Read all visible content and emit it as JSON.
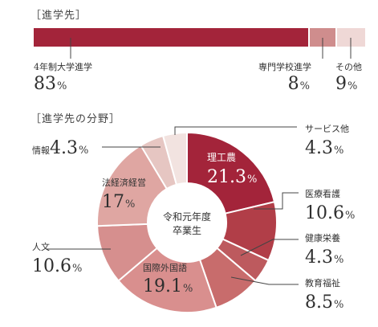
{
  "bar_section": {
    "heading": "［進学先］"
  },
  "pie_section": {
    "heading": "［進学先の分野］",
    "center_label_1": "令和元年度",
    "center_label_2": "卒業生"
  },
  "colors": {
    "bar": [
      "#a3243a",
      "#cf8d8d",
      "#efd8d6"
    ],
    "pie": [
      "#a3243a",
      "#b13e48",
      "#bd5a5e",
      "#c86c6c",
      "#d98f8e",
      "#d68f8e",
      "#dfa6a2",
      "#e6c6c2",
      "#f2e3e0"
    ]
  },
  "chart_data": [
    {
      "type": "bar",
      "orientation": "stacked-horizontal",
      "categories": [
        "4年制大学進学",
        "専門学校進学",
        "その他"
      ],
      "values": [
        83,
        8,
        9
      ],
      "unit": "%",
      "value_labels": [
        "83",
        "8",
        "9"
      ]
    },
    {
      "type": "pie",
      "donut": true,
      "categories": [
        "理工農",
        "医療看護",
        "健康栄養",
        "教育福祉",
        "国際外国語",
        "人文",
        "法経済経営",
        "情報",
        "サービス他"
      ],
      "values": [
        21.3,
        10.6,
        4.3,
        8.5,
        19.1,
        10.6,
        17,
        4.3,
        4.3
      ],
      "value_labels": [
        "21.3",
        "10.6",
        "4.3",
        "8.5",
        "19.1",
        "10.6",
        "17",
        "4.3",
        "4.3"
      ],
      "unit": "%"
    }
  ]
}
